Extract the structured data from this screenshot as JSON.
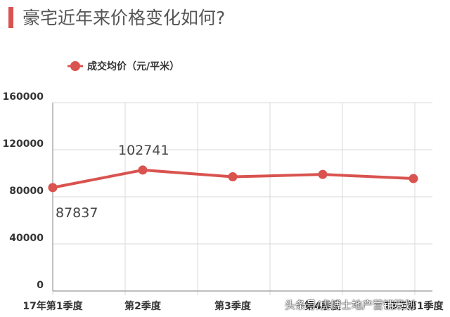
{
  "header": {
    "title": "豪宅近年来价格变化如何?"
  },
  "watermark": "头条号/虎博士地产营销策划",
  "chart_data": {
    "type": "line",
    "title": "豪宅近年来价格变化如何?",
    "categories": [
      "17年第1季度",
      "第2季度",
      "第3季度",
      "第4季度",
      "18年第1季度"
    ],
    "series": [
      {
        "name": "成交均价（元/平米）",
        "values": [
          87837,
          102741,
          97000,
          99000,
          95500
        ],
        "color": "#d9534f"
      }
    ],
    "data_labels": [
      {
        "index": 0,
        "text": "87837"
      },
      {
        "index": 1,
        "text": "102741"
      }
    ],
    "yticks": [
      "0",
      "40000",
      "80000",
      "120000",
      "160000"
    ],
    "ylim": [
      0,
      160000
    ],
    "grid": true,
    "legend_position": "top-left"
  }
}
